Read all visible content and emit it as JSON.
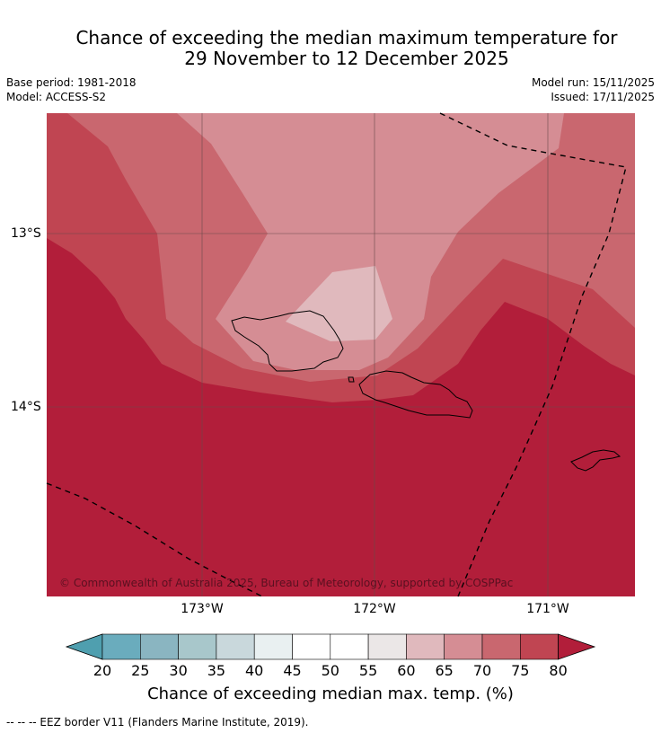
{
  "header": {
    "title_line1": "Chance of exceeding the median maximum temperature for",
    "title_line2": "29 November to 12 December 2025",
    "base_period": "Base period: 1981-2018",
    "model": "Model: ACCESS-S2",
    "model_run": "Model run: 15/11/2025",
    "issued": "Issued: 17/11/2025"
  },
  "map": {
    "copyright": "© Commonwealth of Australia 2025, Bureau of Meteorology, supported by COSPPac",
    "lon_labels": [
      "173°W",
      "172°W",
      "171°W"
    ],
    "lat_labels": [
      "13°S",
      "14°S"
    ]
  },
  "colorbar": {
    "label": "Chance of exceeding median max. temp. (%)",
    "ticks": [
      "20",
      "25",
      "30",
      "35",
      "40",
      "45",
      "50",
      "55",
      "60",
      "65",
      "70",
      "75",
      "80"
    ],
    "colors": [
      "#6aacbd",
      "#8ab5c1",
      "#a8c7cb",
      "#c9d8dc",
      "#e9f0f1",
      "#ffffff",
      "#ffffff",
      "#ebe7e7",
      "#e0b9bd",
      "#d58d94",
      "#c9676f",
      "#c04552"
    ],
    "under_color": "#4f9faf",
    "over_color": "#b21e3a"
  },
  "footnote": "--  --  -- EEZ border V11 (Flanders Marine Institute, 2019)."
}
